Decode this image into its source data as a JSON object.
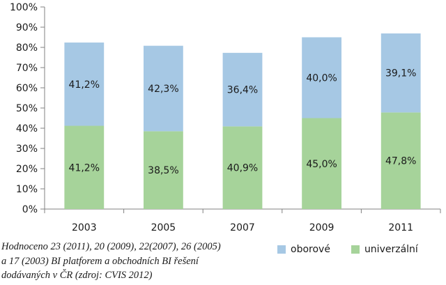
{
  "chart_data": {
    "type": "bar",
    "stacked": true,
    "categories": [
      "2003",
      "2005",
      "2007",
      "2009",
      "2011"
    ],
    "series": [
      {
        "name": "univerzální",
        "values": [
          41.2,
          38.5,
          40.9,
          45.0,
          47.8
        ],
        "labels": [
          "41,2%",
          "38,5%",
          "40,9%",
          "45,0%",
          "47,8%"
        ],
        "color": "#a6d39a"
      },
      {
        "name": "oborové",
        "values": [
          41.2,
          42.3,
          36.4,
          40.0,
          39.1
        ],
        "labels": [
          "41,2%",
          "42,3%",
          "36,4%",
          "40,0%",
          "39,1%"
        ],
        "color": "#a6c8e4"
      }
    ],
    "ylim": [
      0,
      100
    ],
    "yticks": [
      "0%",
      "10%",
      "20%",
      "30%",
      "40%",
      "50%",
      "60%",
      "70%",
      "80%",
      "90%",
      "100%"
    ],
    "legend_order": [
      "oborové",
      "univerzální"
    ],
    "legend_position": "bottom-right",
    "grid": false,
    "axis_color": "#808080"
  },
  "caption": {
    "lines": [
      "Hodnoceno 23 (2011), 20 (2009), 22(2007), 26 (2005)",
      "a 17 (2003) BI platforem a obchodních BI řešení",
      "dodávaných v ČR (zdroj: CVIS 2012)"
    ]
  }
}
